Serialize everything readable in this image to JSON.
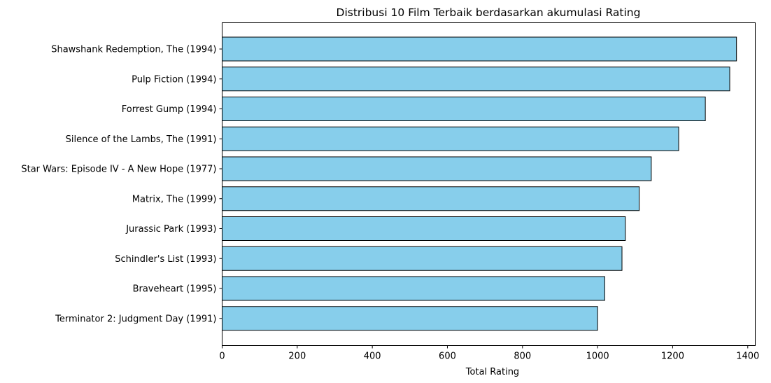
{
  "chart_data": {
    "type": "bar",
    "orientation": "horizontal",
    "title": "Distribusi 10 Film Terbaik berdasarkan akumulasi Rating",
    "xlabel": "Total Rating",
    "ylabel": "",
    "categories": [
      "Shawshank Redemption, The (1994)",
      "Pulp Fiction (1994)",
      "Forrest Gump (1994)",
      "Silence of the Lambs, The (1991)",
      "Star Wars: Episode IV - A New Hope (1977)",
      "Matrix, The (1999)",
      "Jurassic Park (1993)",
      "Schindler's List (1993)",
      "Braveheart (1995)",
      "Terminator 2: Judgment Day (1991)"
    ],
    "values": [
      1370,
      1352,
      1287,
      1216,
      1143,
      1111,
      1074,
      1065,
      1019,
      1000
    ],
    "xlim": [
      0,
      1420
    ],
    "xticks": [
      0,
      200,
      400,
      600,
      800,
      1000,
      1200,
      1400
    ],
    "grid": false,
    "bar_color": "#87CEEB",
    "edge_color": "#000000"
  }
}
